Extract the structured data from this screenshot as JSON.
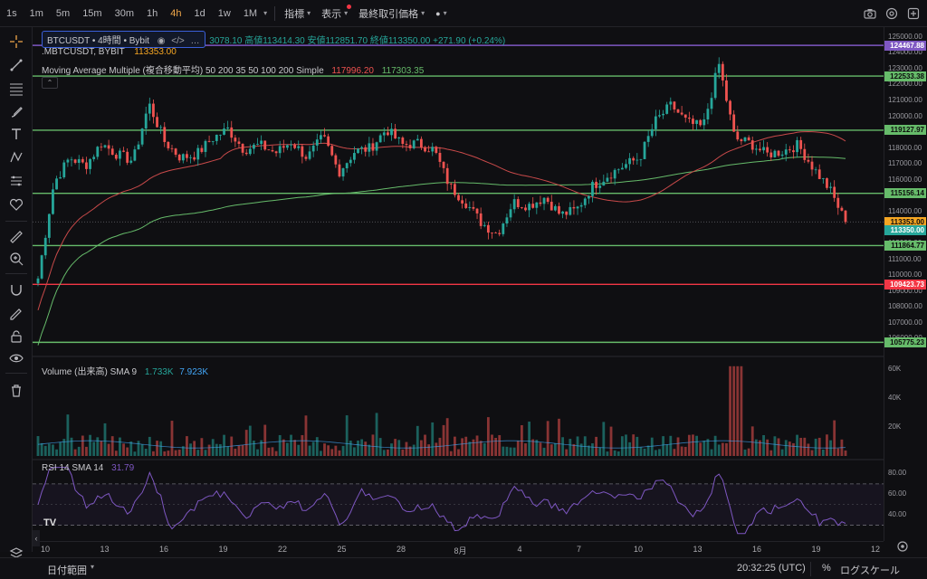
{
  "toolbar": {
    "timeframes": [
      "1s",
      "1m",
      "5m",
      "15m",
      "30m",
      "1h",
      "4h",
      "1d",
      "1w",
      "1M"
    ],
    "active_timeframe": "4h",
    "indicators_label": "指標",
    "display_label": "表示",
    "last_price_label": "最終取引価格"
  },
  "legend": {
    "symbol": "BTCUSDT • 4時間 • Bybit",
    "ohlc_text": "3078.10 高値113414.30 安値112851.70 終値113350.00 +271.90 (+0.24%)",
    "mbt_label": ".MBTCUSDT, BYBIT",
    "mbt_value": "113353.00",
    "ma_label": "Moving Average Multiple (複合移動平均) 50 200 35 50 100 200 Simple",
    "ma_value_1": "117996.20",
    "ma_value_2": "117303.35",
    "volume_label": "Volume (出来高) SMA 9",
    "volume_value_1": "1.733K",
    "volume_value_2": "7.923K",
    "rsi_label": "RSI 14 SMA 14",
    "rsi_value": "31.79"
  },
  "price_axis": {
    "labels": [
      "125000.00",
      "124000.00",
      "123000.00",
      "122000.00",
      "121000.00",
      "120000.00",
      "119000.00",
      "118000.00",
      "117000.00",
      "116000.00",
      "115000.00",
      "114000.00",
      "113000.00",
      "112000.00",
      "111000.00",
      "110000.00",
      "109000.00",
      "108000.00",
      "107000.00",
      "106000.00"
    ],
    "tags": [
      {
        "text": "124467.88",
        "color": "#7e57c2"
      },
      {
        "text": "122533.38",
        "color": "#66bb6a"
      },
      {
        "text": "119127.97",
        "color": "#66bb6a"
      },
      {
        "text": "115156.14",
        "color": "#66bb6a"
      },
      {
        "text": "113353.00",
        "color": "#f5a623"
      },
      {
        "text": "113350.00",
        "color": "#26a69a"
      },
      {
        "text": "111864.77",
        "color": "#66bb6a"
      },
      {
        "text": "109423.73",
        "color": "#f23645"
      },
      {
        "text": "105775.23",
        "color": "#66bb6a"
      }
    ]
  },
  "volume_axis": {
    "labels": [
      "60K",
      "40K",
      "20K"
    ]
  },
  "rsi_axis": {
    "labels": [
      "80.00",
      "60.00",
      "40.00"
    ]
  },
  "time_axis": {
    "labels": [
      "10",
      "13",
      "16",
      "19",
      "22",
      "25",
      "28",
      "8月",
      "4",
      "7",
      "10",
      "13",
      "16",
      "19",
      "12"
    ]
  },
  "bottom": {
    "date_range_label": "日付範囲",
    "clock": "20:32:25 (UTC)",
    "percent_label": "%",
    "log_label": "ログスケール"
  },
  "colors": {
    "up": "#26a69a",
    "down": "#ef5350",
    "ma_red": "#c94a4a",
    "ma_green": "#66bb6a",
    "hline_green": "#66bb6a",
    "hline_red": "#f23645",
    "hline_purple": "#7e57c2",
    "rsi_line": "#7e57c2"
  },
  "chart_data": {
    "type": "candlestick",
    "symbol": "BTCUSDT",
    "interval": "4h",
    "horizontal_levels": [
      124467.88,
      122533.38,
      119127.97,
      115156.14,
      111864.77,
      109423.73,
      105775.23
    ],
    "price_range": [
      105000,
      125500
    ],
    "approx_closes": [
      109800,
      115800,
      117400,
      116900,
      118300,
      117600,
      117200,
      120800,
      118400,
      117400,
      117600,
      118600,
      119200,
      117900,
      118200,
      117700,
      118400,
      117400,
      118700,
      116500,
      117800,
      118000,
      119200,
      118200,
      118300,
      117900,
      115600,
      114600,
      113300,
      112600,
      114600,
      114400,
      114900,
      113800,
      114100,
      115600,
      116300,
      116900,
      117400,
      119700,
      120700,
      119600,
      119300,
      123300,
      118600,
      118300,
      117600,
      117800,
      118200,
      116700,
      115400,
      113350
    ],
    "volume_range": [
      0,
      65000
    ],
    "rsi_last": 31.79
  }
}
